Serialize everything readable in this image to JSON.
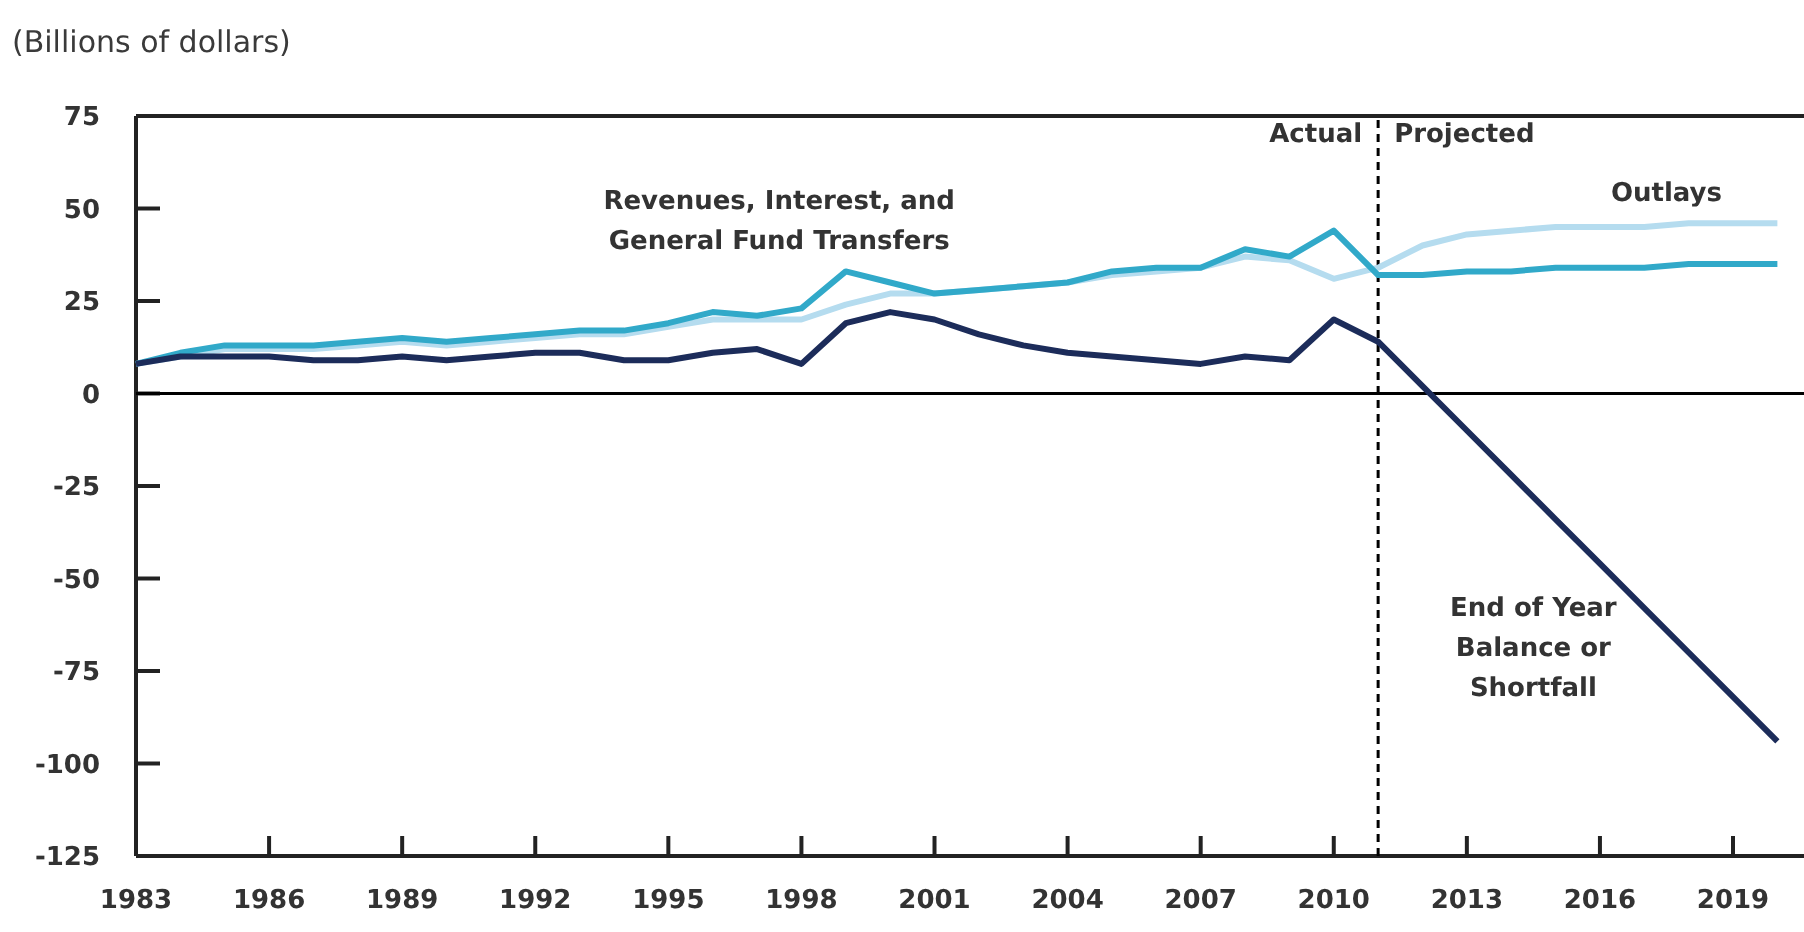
{
  "chart_data": {
    "type": "line",
    "ylabel": "(Billions of dollars)",
    "x": [
      1983,
      1984,
      1985,
      1986,
      1987,
      1988,
      1989,
      1990,
      1991,
      1992,
      1993,
      1994,
      1995,
      1996,
      1997,
      1998,
      1999,
      2000,
      2001,
      2002,
      2003,
      2004,
      2005,
      2006,
      2007,
      2008,
      2009,
      2010,
      2011,
      2012,
      2013,
      2014,
      2015,
      2016,
      2017,
      2018,
      2019,
      2020
    ],
    "series": [
      {
        "name": "Outlays",
        "color": "#b5dcef",
        "values": [
          8,
          10,
          12,
          12,
          12,
          13,
          14,
          13,
          14,
          15,
          16,
          16,
          18,
          20,
          20,
          20,
          24,
          27,
          27,
          28,
          29,
          30,
          32,
          33,
          34,
          37,
          36,
          31,
          34,
          40,
          43,
          44,
          45,
          45,
          45,
          46,
          46,
          46
        ]
      },
      {
        "name": "Revenues, Interest, and General Fund Transfers",
        "color": "#31a9c9",
        "values": [
          8,
          11,
          13,
          13,
          13,
          14,
          15,
          14,
          15,
          16,
          17,
          17,
          19,
          22,
          21,
          23,
          33,
          30,
          27,
          28,
          29,
          30,
          33,
          34,
          34,
          39,
          37,
          44,
          32,
          32,
          33,
          33,
          34,
          34,
          34,
          35,
          35,
          35
        ]
      },
      {
        "name": "End of Year Balance or Shortfall",
        "color": "#1c2c5a",
        "values": [
          8,
          10,
          10,
          10,
          9,
          9,
          10,
          9,
          10,
          11,
          11,
          9,
          9,
          11,
          12,
          8,
          19,
          22,
          20,
          16,
          13,
          11,
          10,
          9,
          8,
          10,
          9,
          20,
          14,
          2,
          -10,
          -22,
          -34,
          -46,
          -58,
          -70,
          -82,
          -94
        ]
      }
    ],
    "xlim": [
      1983,
      2020.6
    ],
    "xticks": [
      1983,
      1986,
      1989,
      1992,
      1995,
      1998,
      2001,
      2004,
      2007,
      2010,
      2013,
      2016,
      2019
    ],
    "ylim": [
      -125,
      75
    ],
    "yticks": [
      -125,
      -100,
      -75,
      -50,
      -25,
      0,
      25,
      50,
      75
    ],
    "grid": false,
    "marker": "none",
    "line_style": "solid",
    "ref_lines": [
      {
        "axis": "x",
        "value": 2011,
        "line_style": "dashed",
        "color": "#000000"
      },
      {
        "axis": "y",
        "value": 0,
        "color": "#000000"
      }
    ],
    "annotations": [
      {
        "text": "Actual",
        "x": 2011,
        "y": 68
      },
      {
        "text": "Projected",
        "x": 2011,
        "y": 68
      }
    ]
  }
}
